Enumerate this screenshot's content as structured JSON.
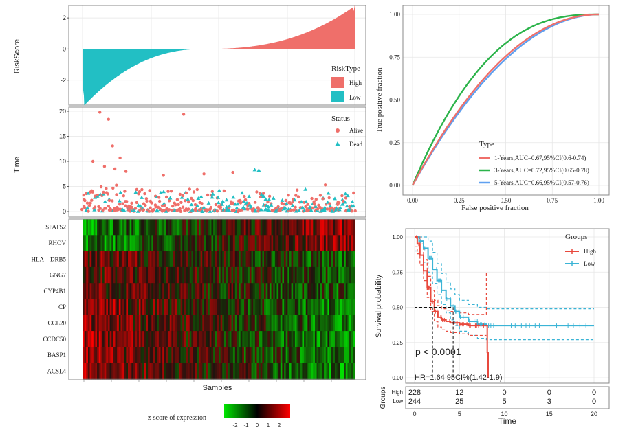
{
  "chart_data": [
    {
      "type": "bar",
      "name": "risk-score-distribution",
      "ylabel": "RiskScore",
      "ylim": [
        -3.6,
        2.8
      ],
      "yticks": [
        "2",
        "0",
        "-2"
      ],
      "n_samples": 472,
      "min_value": -3.5,
      "max_value": 2.8,
      "crossover_index": 200,
      "legend": {
        "title": "RiskType",
        "items": [
          {
            "label": "High",
            "color": "#ef6f6a"
          },
          {
            "label": "Low",
            "color": "#22bfc4"
          }
        ]
      }
    },
    {
      "type": "scatter",
      "name": "survival-time-status",
      "ylabel": "Time",
      "ylim": [
        0,
        20
      ],
      "yticks": [
        "20",
        "15",
        "10",
        "5",
        "0"
      ],
      "legend": {
        "title": "Status",
        "items": [
          {
            "label": "Alive",
            "color": "#ef6f6a",
            "shape": "circle"
          },
          {
            "label": "Dead",
            "color": "#22bfc4",
            "shape": "triangle"
          }
        ]
      },
      "outliers": [
        {
          "x": 30,
          "y": 19.8
        },
        {
          "x": 45,
          "y": 18.4
        },
        {
          "x": 175,
          "y": 19.4
        },
        {
          "x": 18,
          "y": 10
        },
        {
          "x": 38,
          "y": 9
        },
        {
          "x": 52,
          "y": 13.1
        },
        {
          "x": 65,
          "y": 10.7
        },
        {
          "x": 56,
          "y": 8.5
        },
        {
          "x": 260,
          "y": 7.8
        },
        {
          "x": 305,
          "y": 8.2
        },
        {
          "x": 298,
          "y": 8.3
        },
        {
          "x": 420,
          "y": 5.3
        },
        {
          "x": 210,
          "y": 7.5
        },
        {
          "x": 140,
          "y": 7.2
        },
        {
          "x": 75,
          "y": 8
        }
      ]
    },
    {
      "type": "heatmap",
      "name": "gene-expression-heatmap",
      "xlabel": "Samples",
      "genes": [
        "SPATS2",
        "RHOV",
        "HLA__DRB5",
        "GNG7",
        "CYP4B1",
        "CP",
        "CCL20",
        "CCDC50",
        "BASP1",
        "ACSL4"
      ],
      "legend": {
        "title": "z-score of expression",
        "ticks": [
          "-2",
          "-1",
          "0",
          "1",
          "2"
        ],
        "colors": [
          "#00e600",
          "#000000",
          "#ff0000"
        ]
      }
    },
    {
      "type": "line",
      "name": "time-dependent-roc",
      "xlabel": "False positive fraction",
      "ylabel": "True positive fraction",
      "xlim": [
        0,
        1
      ],
      "ylim": [
        0,
        1
      ],
      "xticks": [
        "0.00",
        "0.25",
        "0.50",
        "0.75",
        "1.00"
      ],
      "yticks": [
        "1.00",
        "0.75",
        "0.50",
        "0.25",
        "0.00"
      ],
      "legend_title": "Type",
      "series": [
        {
          "name": "1-Years,AUC=0.67,95%CI(0.6-0.74)",
          "color": "#ef6f6a",
          "auc": 0.67
        },
        {
          "name": "3-Years,AUC=0.72,95%CI(0.65-0.78)",
          "color": "#2bb34a",
          "auc": 0.72
        },
        {
          "name": "5-Years,AUC=0.66,95%CI(0.57-0.76)",
          "color": "#5fa0f0",
          "auc": 0.66
        }
      ]
    },
    {
      "type": "line",
      "name": "kaplan-meier-survival",
      "xlabel": "Time",
      "ylabel": "Survival probability",
      "xlim": [
        0,
        20
      ],
      "ylim": [
        0,
        1
      ],
      "xticks": [
        "0",
        "5",
        "10",
        "15",
        "20"
      ],
      "yticks": [
        "1.00",
        "0.75",
        "0.50",
        "0.25",
        "0.00"
      ],
      "legend_title": "Groups",
      "pvalue": "p < 0.0001",
      "hr": "HR=1.64 95CI%(1.42-1.9)",
      "median_high": 2,
      "median_low": 4.3,
      "series": [
        {
          "name": "High",
          "color": "#e8493d",
          "x": [
            0,
            0.3,
            0.6,
            1.0,
            1.4,
            1.8,
            2.2,
            2.6,
            3.0,
            3.5,
            4.0,
            5.0,
            6.0,
            7.0,
            8.0,
            8.1,
            8.2
          ],
          "y": [
            1.0,
            0.95,
            0.87,
            0.76,
            0.64,
            0.54,
            0.47,
            0.43,
            0.41,
            0.4,
            0.39,
            0.38,
            0.37,
            0.37,
            0.37,
            0.18,
            0.0
          ]
        },
        {
          "name": "Low",
          "color": "#3bb4d6",
          "x": [
            0,
            0.5,
            1.0,
            1.5,
            2.0,
            2.5,
            3.0,
            3.5,
            4.0,
            4.5,
            5.0,
            6.0,
            7.0,
            8.0,
            20.0
          ],
          "y": [
            1.0,
            0.97,
            0.92,
            0.85,
            0.77,
            0.69,
            0.62,
            0.56,
            0.51,
            0.47,
            0.43,
            0.4,
            0.38,
            0.37,
            0.37
          ]
        }
      ],
      "risk_table": {
        "title": "Groups",
        "rows": [
          {
            "label": "High",
            "values": [
              "228",
              "12",
              "0",
              "0",
              "0"
            ]
          },
          {
            "label": "Low",
            "values": [
              "244",
              "25",
              "5",
              "3",
              "0"
            ]
          }
        ]
      }
    }
  ]
}
